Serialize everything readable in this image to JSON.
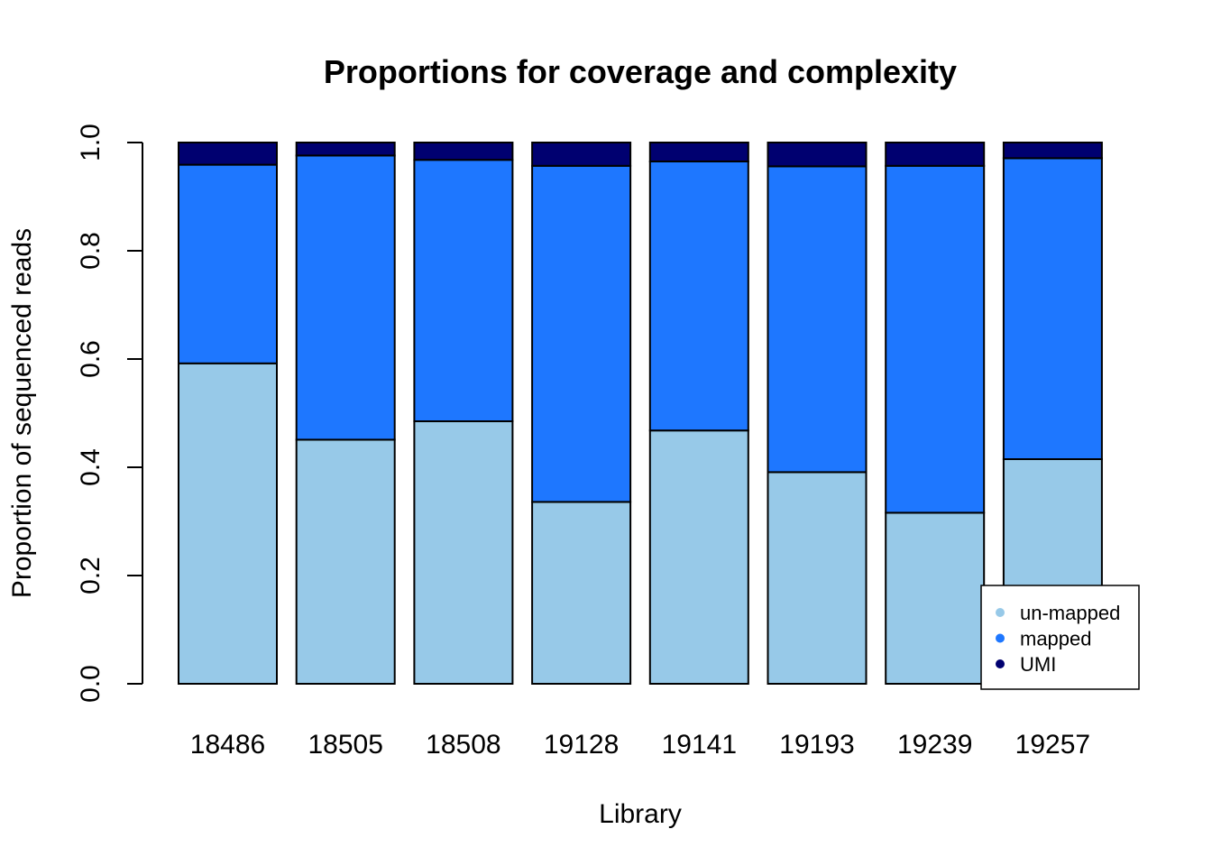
{
  "chart_data": {
    "type": "bar",
    "stacked": true,
    "title": "Proportions for coverage and complexity",
    "xlabel": "Library",
    "ylabel": "Proportion of sequenced reads",
    "ylim": [
      0,
      1
    ],
    "yticks": [
      "0.0",
      "0.2",
      "0.4",
      "0.6",
      "0.8",
      "1.0"
    ],
    "categories": [
      "18486",
      "18505",
      "18508",
      "19128",
      "19141",
      "19193",
      "19239",
      "19257"
    ],
    "series": [
      {
        "name": "un-mapped",
        "color": "#97c9e8",
        "values": [
          0.592,
          0.451,
          0.485,
          0.336,
          0.468,
          0.391,
          0.316,
          0.415
        ]
      },
      {
        "name": "mapped",
        "color": "#1e77ff",
        "values": [
          0.367,
          0.525,
          0.483,
          0.621,
          0.497,
          0.565,
          0.641,
          0.556
        ]
      },
      {
        "name": "UMI",
        "color": "#000070",
        "values": [
          0.041,
          0.024,
          0.032,
          0.043,
          0.035,
          0.044,
          0.043,
          0.029
        ]
      }
    ],
    "legend": {
      "position": "bottom-right",
      "entries": [
        "un-mapped",
        "mapped",
        "UMI"
      ]
    },
    "grid": false
  }
}
